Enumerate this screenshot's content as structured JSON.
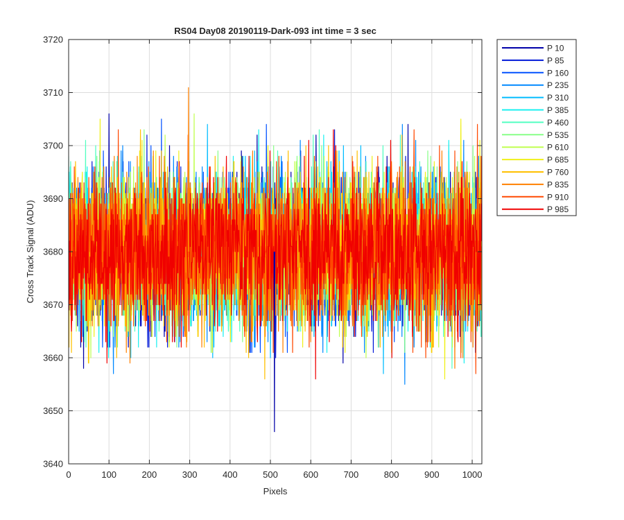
{
  "chart_data": {
    "type": "line",
    "title": "RS04 Day08 20190119-Dark-093 int time = 3 sec",
    "xlabel": "Pixels",
    "ylabel": "Cross Track Signal (ADU)",
    "xlim": [
      0,
      1024
    ],
    "ylim": [
      3640,
      3720
    ],
    "xticks": [
      0,
      100,
      200,
      300,
      400,
      500,
      600,
      700,
      800,
      900,
      1000
    ],
    "yticks": [
      3640,
      3650,
      3660,
      3670,
      3680,
      3690,
      3700,
      3710,
      3720
    ],
    "grid": true,
    "legend_position": "outside-top-right",
    "noise": {
      "mean": 3680,
      "std": 7,
      "min": 3646,
      "max": 3711,
      "points_per_series": 1024
    },
    "series": [
      {
        "name": "P 10",
        "color": "#0000a8"
      },
      {
        "name": "P 85",
        "color": "#0018d8"
      },
      {
        "name": "P 160",
        "color": "#0050ff"
      },
      {
        "name": "P 235",
        "color": "#0088ff"
      },
      {
        "name": "P 310",
        "color": "#00bcff"
      },
      {
        "name": "P 385",
        "color": "#18f0f0"
      },
      {
        "name": "P 460",
        "color": "#50ffc0"
      },
      {
        "name": "P 535",
        "color": "#88ff88"
      },
      {
        "name": "P 610",
        "color": "#c0ff50"
      },
      {
        "name": "P 685",
        "color": "#f0f018"
      },
      {
        "name": "P 760",
        "color": "#ffc000"
      },
      {
        "name": "P 835",
        "color": "#ff8000"
      },
      {
        "name": "P 910",
        "color": "#ff4800"
      },
      {
        "name": "P 985",
        "color": "#f00000"
      }
    ]
  }
}
